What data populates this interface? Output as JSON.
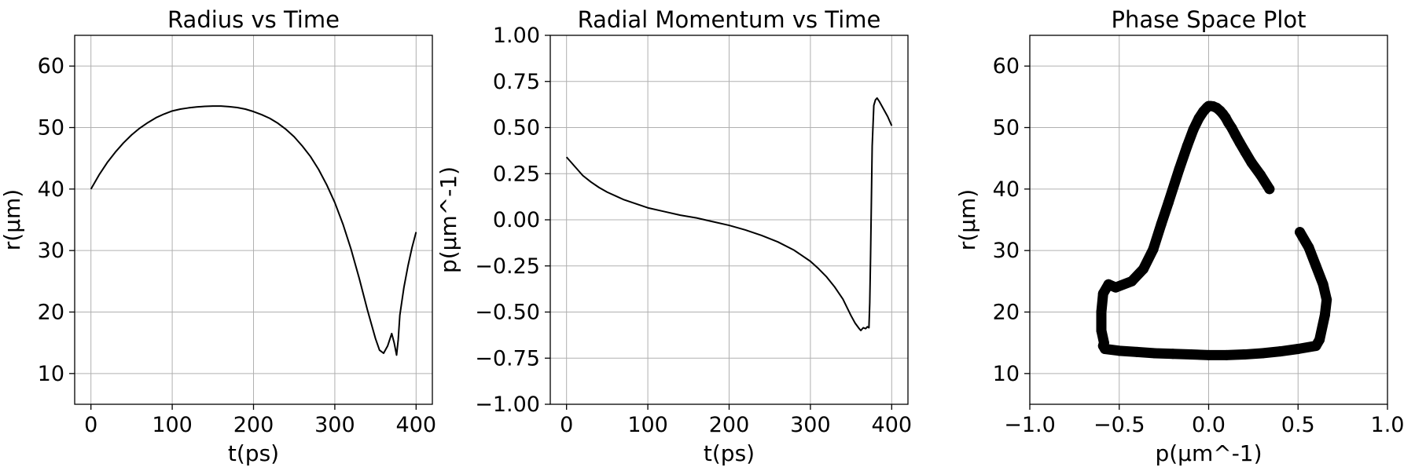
{
  "chart_data": [
    {
      "type": "line",
      "title": "Radius vs Time",
      "xlabel": "t(ps)",
      "ylabel": "r(μm)",
      "xlim": [
        -20,
        420
      ],
      "ylim": [
        5,
        65
      ],
      "xticks": [
        0,
        100,
        200,
        300,
        400
      ],
      "yticks": [
        10,
        20,
        30,
        40,
        50,
        60
      ],
      "xtick_labels": [
        "0",
        "100",
        "200",
        "300",
        "400"
      ],
      "ytick_labels": [
        "10",
        "20",
        "30",
        "40",
        "50",
        "60"
      ],
      "grid": true,
      "line_color": "#000000",
      "series": [
        {
          "x": [
            0,
            10,
            20,
            30,
            40,
            50,
            60,
            70,
            80,
            90,
            100,
            110,
            120,
            130,
            140,
            150,
            160,
            170,
            180,
            190,
            200,
            210,
            220,
            230,
            240,
            250,
            260,
            270,
            280,
            290,
            300,
            310,
            320,
            330,
            340,
            350,
            355,
            360,
            365,
            370,
            373,
            376,
            378,
            380,
            385,
            390,
            395,
            400
          ],
          "y": [
            40,
            42.3,
            44.3,
            46.0,
            47.5,
            48.8,
            49.9,
            50.8,
            51.6,
            52.2,
            52.7,
            53.0,
            53.2,
            53.35,
            53.45,
            53.5,
            53.5,
            53.4,
            53.25,
            53.0,
            52.6,
            52.1,
            51.5,
            50.7,
            49.7,
            48.5,
            47.0,
            45.3,
            43.2,
            40.7,
            37.8,
            34.3,
            30.2,
            25.5,
            20.4,
            15.7,
            13.8,
            13.3,
            14.5,
            16.5,
            15.0,
            13.0,
            15.5,
            19.5,
            24.0,
            27.5,
            30.5,
            33.0
          ]
        }
      ]
    },
    {
      "type": "line",
      "title": "Radial Momentum vs Time",
      "xlabel": "t(ps)",
      "ylabel": "p(μm^-1)",
      "xlim": [
        -20,
        420
      ],
      "ylim": [
        -1.0,
        1.0
      ],
      "xticks": [
        0,
        100,
        200,
        300,
        400
      ],
      "yticks": [
        -1.0,
        -0.75,
        -0.5,
        -0.25,
        0.0,
        0.25,
        0.5,
        0.75,
        1.0
      ],
      "xtick_labels": [
        "0",
        "100",
        "200",
        "300",
        "400"
      ],
      "ytick_labels": [
        "−1.00",
        "−0.75",
        "−0.50",
        "−0.25",
        "0.00",
        "0.25",
        "0.50",
        "0.75",
        "1.00"
      ],
      "grid": true,
      "line_color": "#000000",
      "series": [
        {
          "x": [
            0,
            10,
            20,
            30,
            40,
            50,
            60,
            70,
            80,
            90,
            100,
            120,
            140,
            160,
            180,
            200,
            220,
            240,
            260,
            280,
            300,
            310,
            320,
            330,
            340,
            350,
            355,
            360,
            362,
            365,
            368,
            370,
            372,
            373,
            374,
            375,
            376,
            378,
            380,
            382,
            385,
            390,
            395,
            400
          ],
          "y": [
            0.34,
            0.29,
            0.24,
            0.205,
            0.175,
            0.15,
            0.13,
            0.11,
            0.095,
            0.08,
            0.065,
            0.045,
            0.025,
            0.01,
            -0.01,
            -0.03,
            -0.055,
            -0.085,
            -0.12,
            -0.165,
            -0.225,
            -0.265,
            -0.31,
            -0.365,
            -0.43,
            -0.52,
            -0.56,
            -0.59,
            -0.6,
            -0.585,
            -0.59,
            -0.58,
            -0.585,
            -0.45,
            -0.2,
            0.1,
            0.4,
            0.62,
            0.65,
            0.66,
            0.64,
            0.6,
            0.56,
            0.51
          ]
        }
      ]
    },
    {
      "type": "scatter",
      "title": "Phase Space Plot",
      "xlabel": "p(μm^-1)",
      "ylabel": "r(μm)",
      "xlim": [
        -1.0,
        1.0
      ],
      "ylim": [
        5,
        65
      ],
      "xticks": [
        -1.0,
        -0.5,
        0.0,
        0.5,
        1.0
      ],
      "yticks": [
        10,
        20,
        30,
        40,
        50,
        60
      ],
      "xtick_labels": [
        "−1.0",
        "−0.5",
        "0.0",
        "0.5",
        "1.0"
      ],
      "ytick_labels": [
        "10",
        "20",
        "30",
        "40",
        "50",
        "60"
      ],
      "grid": true,
      "marker_color": "#000000",
      "series": [
        {
          "x": [
            0.34,
            0.29,
            0.24,
            0.205,
            0.175,
            0.15,
            0.13,
            0.11,
            0.095,
            0.08,
            0.065,
            0.045,
            0.025,
            0.01,
            0.0,
            -0.01,
            -0.03,
            -0.055,
            -0.085,
            -0.12,
            -0.165,
            -0.225,
            -0.265,
            -0.31,
            -0.365,
            -0.43,
            -0.52,
            -0.56,
            -0.59,
            -0.6,
            -0.6,
            -0.585,
            -0.59,
            -0.58,
            -0.5,
            -0.4,
            -0.3,
            -0.2,
            -0.1,
            0.0,
            0.1,
            0.2,
            0.3,
            0.4,
            0.5,
            0.6,
            0.62,
            0.65,
            0.66,
            0.64,
            0.6,
            0.56,
            0.51
          ],
          "y": [
            40,
            42.3,
            44.3,
            46.0,
            47.5,
            48.8,
            49.9,
            50.8,
            51.6,
            52.2,
            52.7,
            53.2,
            53.45,
            53.5,
            53.5,
            53.25,
            52.6,
            51.5,
            49.7,
            47.0,
            43.2,
            37.8,
            34.3,
            30.2,
            27.0,
            25.0,
            24.0,
            24.5,
            23.0,
            20.0,
            17.0,
            15.0,
            14.5,
            14.0,
            13.7,
            13.5,
            13.3,
            13.2,
            13.1,
            13.0,
            13.0,
            13.1,
            13.3,
            13.6,
            14.0,
            14.5,
            15.5,
            19.5,
            22.0,
            24.5,
            27.5,
            30.5,
            33.0
          ]
        }
      ]
    }
  ]
}
